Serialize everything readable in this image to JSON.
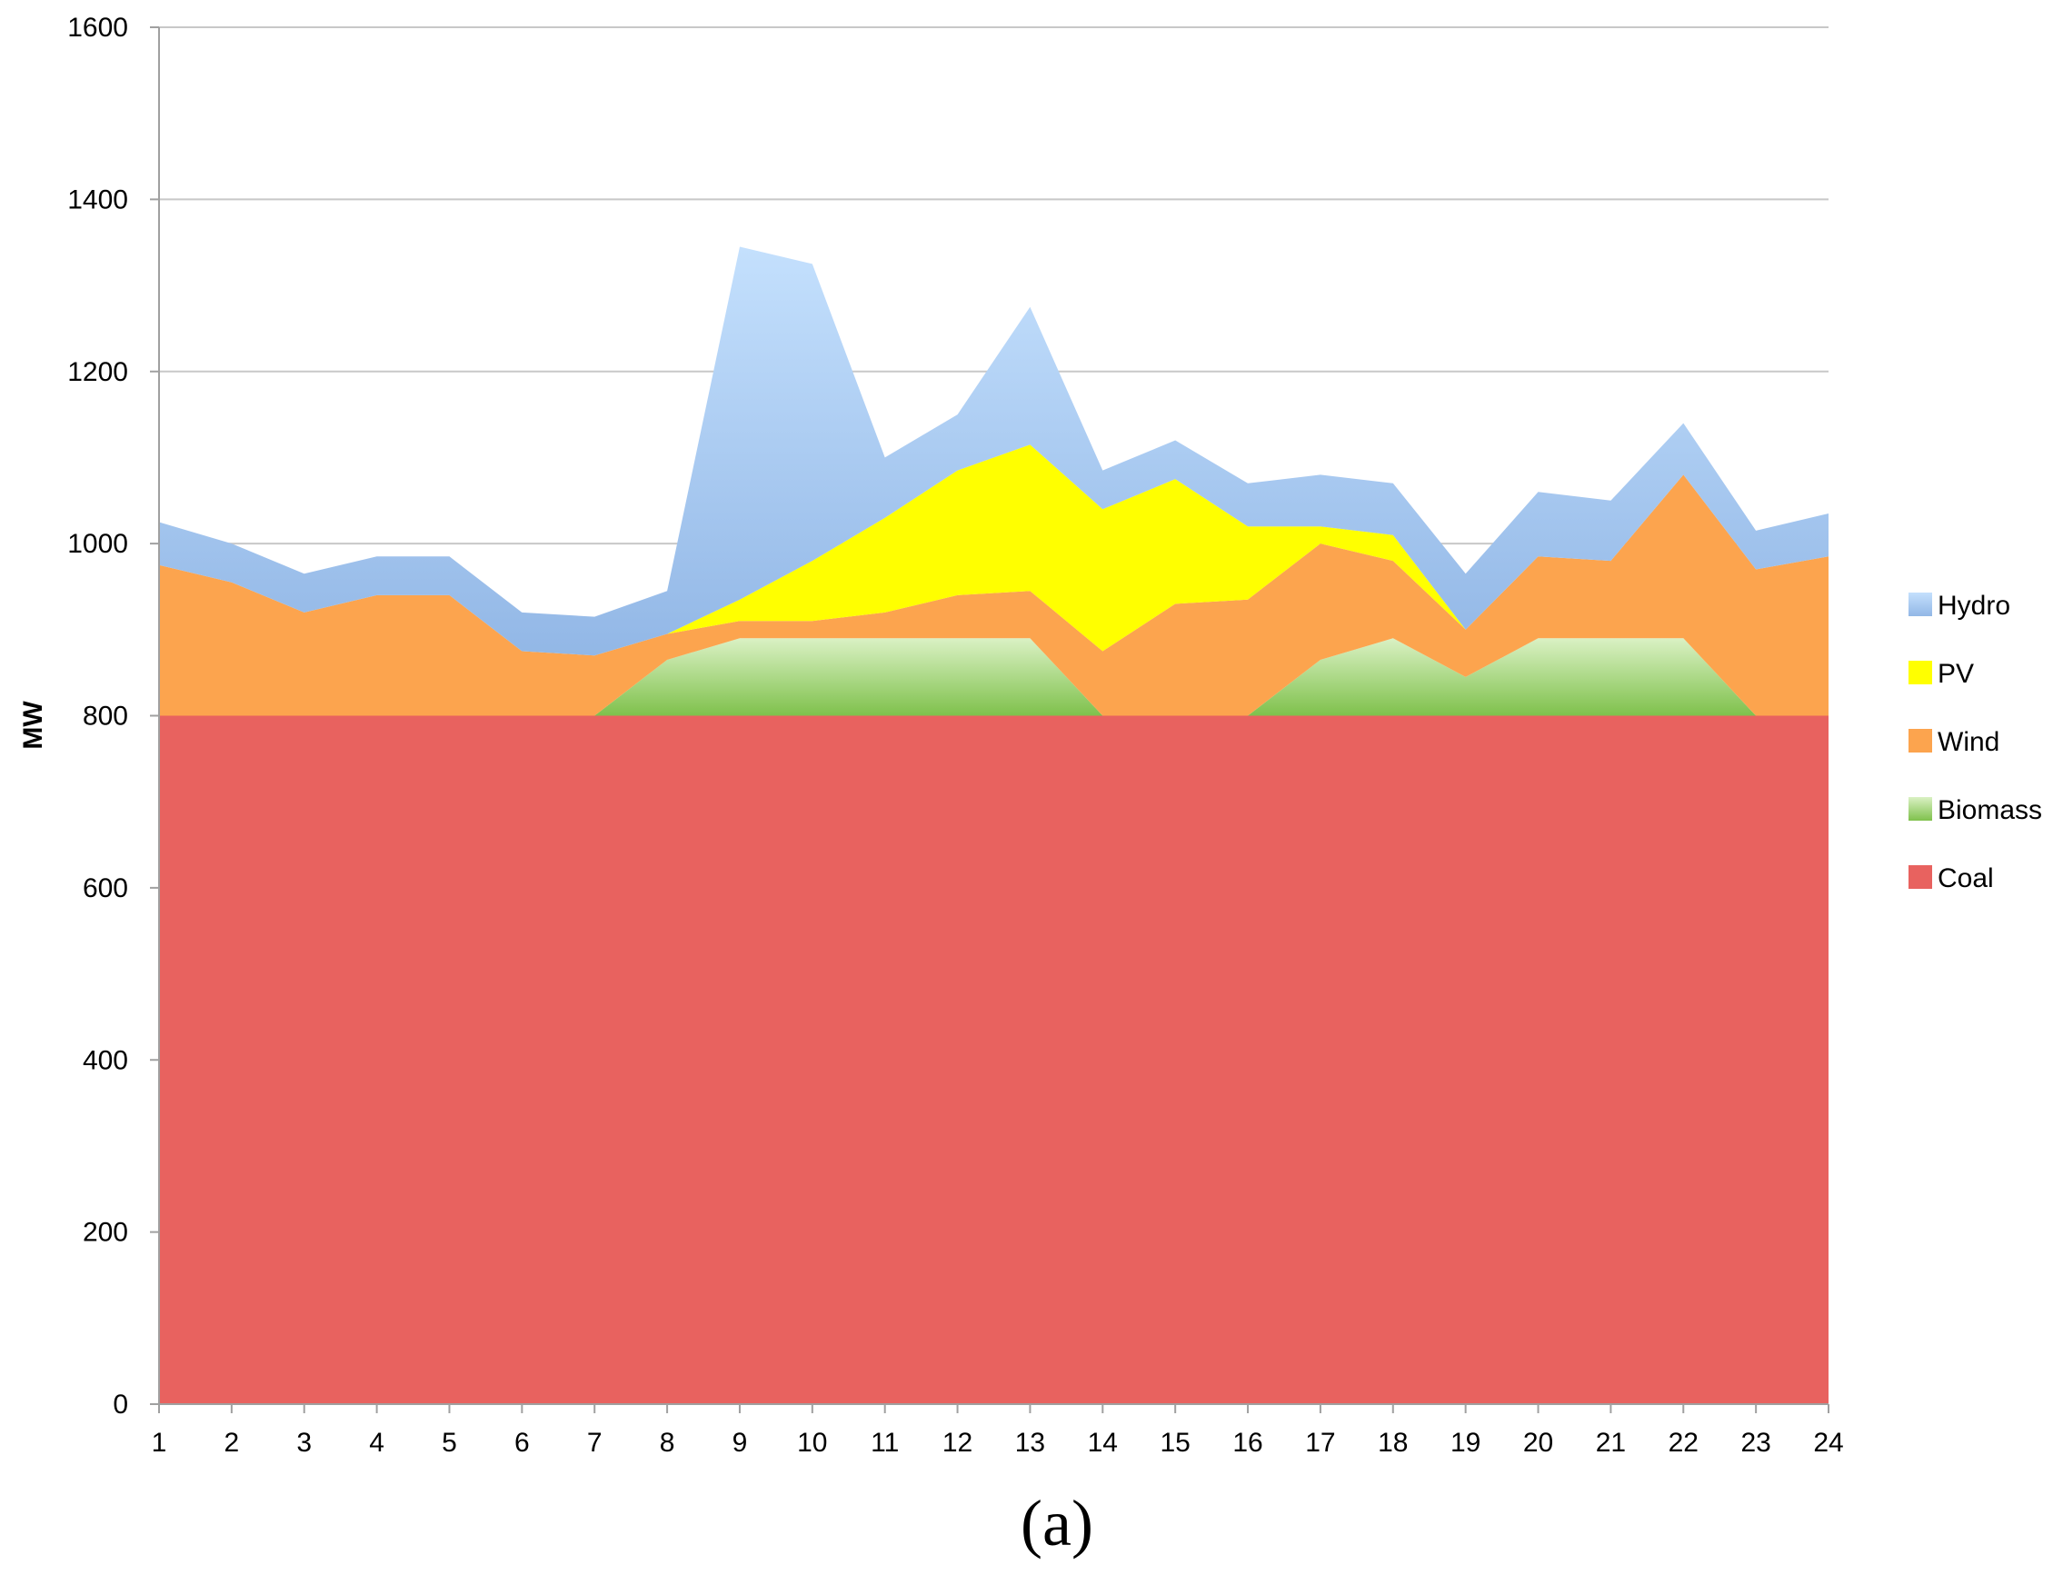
{
  "caption": "(a)",
  "chart_data": {
    "type": "area",
    "stacked": true,
    "xlabel": "",
    "ylabel": "MW",
    "ylim": [
      0,
      1600
    ],
    "yticks": [
      0,
      200,
      400,
      600,
      800,
      1000,
      1200,
      1400,
      1600
    ],
    "x": [
      1,
      2,
      3,
      4,
      5,
      6,
      7,
      8,
      9,
      10,
      11,
      12,
      13,
      14,
      15,
      16,
      17,
      18,
      19,
      20,
      21,
      22,
      23,
      24
    ],
    "grid": "horizontal",
    "legend_position": "right",
    "series": [
      {
        "name": "Coal",
        "color": "#e8625f",
        "values": [
          800,
          800,
          800,
          800,
          800,
          800,
          800,
          800,
          800,
          800,
          800,
          800,
          800,
          800,
          800,
          800,
          800,
          800,
          800,
          800,
          800,
          800,
          800,
          800
        ]
      },
      {
        "name": "Biomass",
        "color": "#8ec95a",
        "values": [
          0,
          0,
          0,
          0,
          0,
          0,
          0,
          65,
          90,
          90,
          90,
          90,
          90,
          0,
          0,
          0,
          65,
          90,
          45,
          90,
          90,
          90,
          0,
          0
        ]
      },
      {
        "name": "Wind",
        "color": "#fca44e",
        "values": [
          175,
          155,
          120,
          140,
          140,
          75,
          70,
          30,
          20,
          20,
          30,
          50,
          55,
          75,
          130,
          135,
          135,
          90,
          55,
          95,
          90,
          190,
          170,
          185
        ]
      },
      {
        "name": "PV",
        "color": "#ffff00",
        "values": [
          0,
          0,
          0,
          0,
          0,
          0,
          0,
          0,
          25,
          70,
          110,
          145,
          170,
          165,
          145,
          85,
          20,
          30,
          0,
          0,
          0,
          0,
          0,
          0
        ]
      },
      {
        "name": "Hydro",
        "color": "#9ec3ec",
        "values": [
          50,
          45,
          45,
          45,
          45,
          45,
          45,
          50,
          410,
          345,
          70,
          65,
          160,
          45,
          45,
          50,
          60,
          60,
          65,
          75,
          70,
          60,
          45,
          50
        ]
      }
    ]
  }
}
